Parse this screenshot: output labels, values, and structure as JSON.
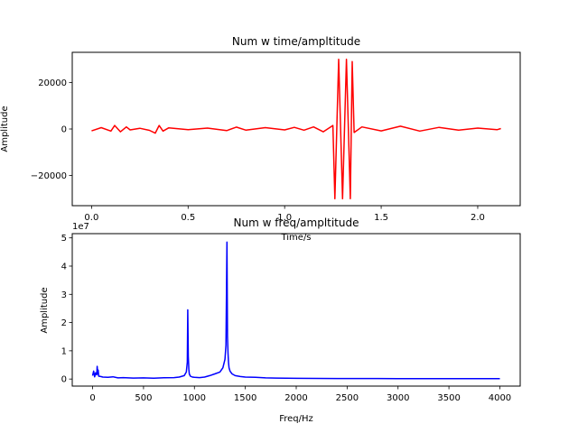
{
  "chart_data": [
    {
      "type": "line",
      "title": "Num w time/ampltitude",
      "xlabel": "Time/s",
      "ylabel": "Amplitude",
      "xlim": [
        -0.1,
        2.22
      ],
      "ylim": [
        -33000,
        33000
      ],
      "xticks": [
        0.0,
        0.5,
        1.0,
        1.5,
        2.0
      ],
      "xtick_labels": [
        "0.0",
        "0.5",
        "1.0",
        "1.5",
        "2.0"
      ],
      "yticks": [
        -20000,
        0,
        20000
      ],
      "ytick_labels": [
        "−20000",
        "0",
        "20000"
      ],
      "grid": false,
      "series": [
        {
          "color": "#ff0000",
          "x": [
            0.0,
            0.05,
            0.1,
            0.12,
            0.15,
            0.18,
            0.2,
            0.25,
            0.3,
            0.33,
            0.35,
            0.37,
            0.4,
            0.5,
            0.6,
            0.7,
            0.75,
            0.8,
            0.9,
            1.0,
            1.05,
            1.1,
            1.15,
            1.2,
            1.25,
            1.26,
            1.28,
            1.3,
            1.32,
            1.34,
            1.35,
            1.36,
            1.4,
            1.5,
            1.6,
            1.7,
            1.8,
            1.9,
            2.0,
            2.1,
            2.12
          ],
          "y": [
            -800,
            600,
            -900,
            1500,
            -1200,
            900,
            -400,
            300,
            -600,
            -1800,
            1500,
            -900,
            500,
            -300,
            400,
            -700,
            800,
            -500,
            600,
            -400,
            700,
            -500,
            900,
            -1200,
            1500,
            -30000,
            30000,
            -30000,
            30000,
            -30000,
            29000,
            -1500,
            900,
            -800,
            1200,
            -900,
            700,
            -500,
            400,
            -300,
            200
          ]
        }
      ]
    },
    {
      "type": "line",
      "title": "Num w freq/ampltitude",
      "xlabel": "Freq/Hz",
      "ylabel": "Amplitude",
      "offset_text": "1e7",
      "xlim": [
        -200,
        4200
      ],
      "ylim": [
        -2500000,
        51500000
      ],
      "xticks": [
        0,
        500,
        1000,
        1500,
        2000,
        2500,
        3000,
        3500,
        4000
      ],
      "xtick_labels": [
        "0",
        "500",
        "1000",
        "1500",
        "2000",
        "2500",
        "3000",
        "3500",
        "4000"
      ],
      "yticks": [
        0,
        10000000,
        20000000,
        30000000,
        40000000,
        50000000
      ],
      "ytick_labels": [
        "0",
        "1",
        "2",
        "3",
        "4",
        "5"
      ],
      "grid": false,
      "series": [
        {
          "color": "#0000ff",
          "x": [
            0,
            10,
            20,
            30,
            40,
            45,
            50,
            55,
            60,
            80,
            100,
            150,
            200,
            250,
            300,
            400,
            500,
            600,
            700,
            800,
            850,
            900,
            920,
            930,
            935,
            940,
            945,
            950,
            960,
            980,
            1000,
            1050,
            1100,
            1150,
            1200,
            1250,
            1280,
            1300,
            1310,
            1320,
            1325,
            1330,
            1335,
            1340,
            1350,
            1370,
            1400,
            1450,
            1500,
            1600,
            1700,
            1800,
            1900,
            2000,
            2200,
            2400,
            2600,
            2800,
            3000,
            3200,
            3400,
            3600,
            3800,
            4000
          ],
          "y": [
            1200000,
            2800000,
            800000,
            2200000,
            1500000,
            4500000,
            1800000,
            3200000,
            1000000,
            900000,
            700000,
            600000,
            800000,
            400000,
            500000,
            350000,
            400000,
            300000,
            450000,
            500000,
            700000,
            1200000,
            2500000,
            6000000,
            24500000,
            8000000,
            3500000,
            1800000,
            1000000,
            700000,
            600000,
            500000,
            700000,
            1200000,
            1800000,
            2500000,
            4000000,
            7000000,
            12000000,
            48500000,
            15000000,
            9000000,
            6000000,
            4000000,
            2800000,
            1800000,
            1200000,
            900000,
            700000,
            600000,
            400000,
            350000,
            300000,
            250000,
            220000,
            200000,
            180000,
            170000,
            160000,
            150000,
            140000,
            130000,
            120000,
            110000
          ]
        }
      ]
    }
  ]
}
